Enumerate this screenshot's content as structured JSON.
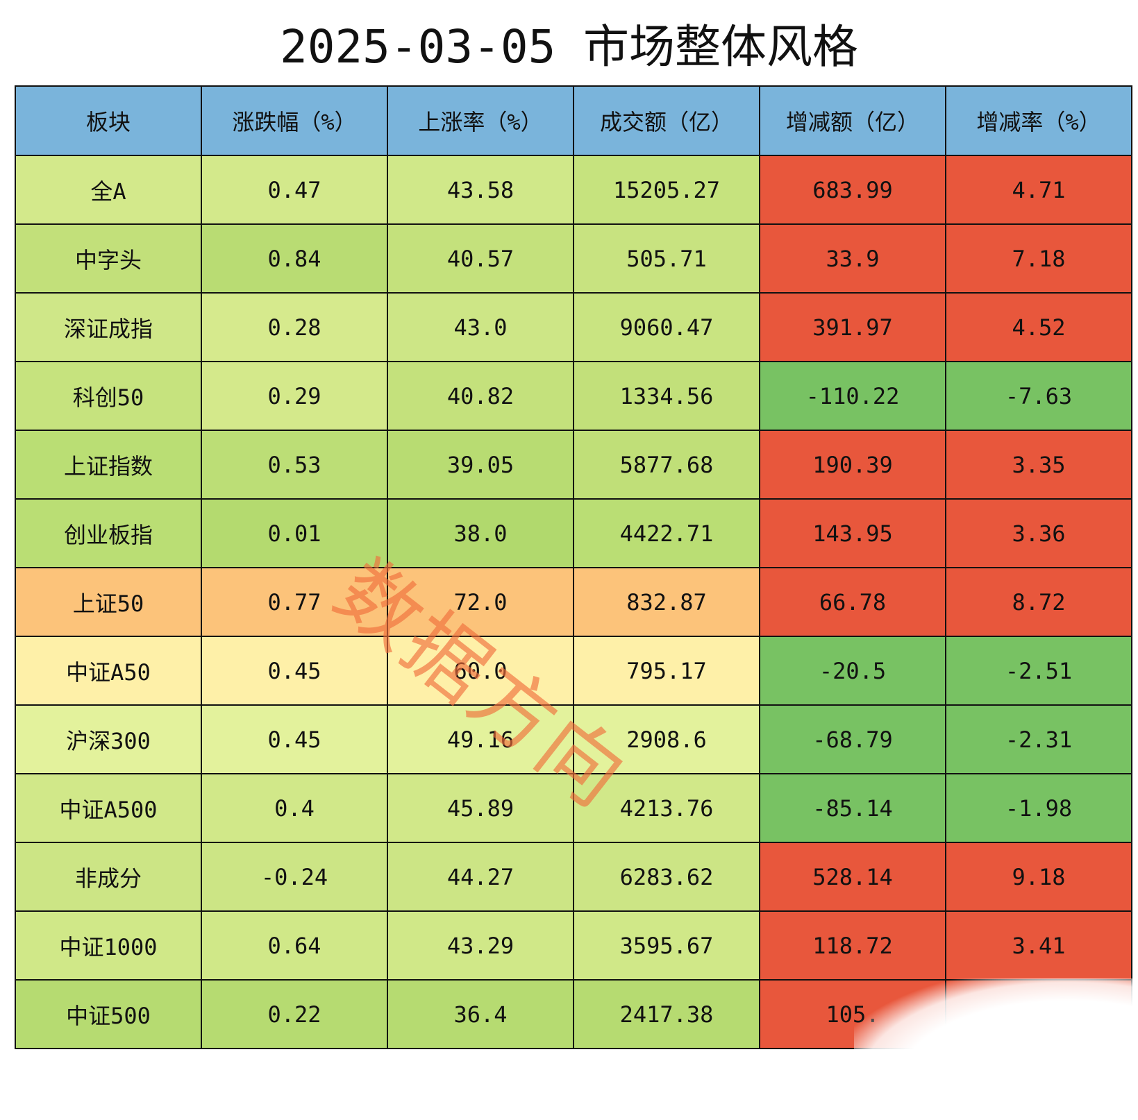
{
  "header": {
    "title": "2025-03-05 市场整体风格"
  },
  "watermark": "数据方向",
  "table": {
    "header_color": "#7ab4db",
    "columns": [
      "板块",
      "涨跌幅（%）",
      "上涨率（%）",
      "成交额（亿）",
      "增减额（亿）",
      "增减率（%）"
    ],
    "rows": [
      [
        "全A",
        "0.47",
        "43.58",
        "15205.27",
        "683.99",
        "4.71"
      ],
      [
        "中字头",
        "0.84",
        "40.57",
        "505.71",
        "33.9",
        "7.18"
      ],
      [
        "深证成指",
        "0.28",
        "43.0",
        "9060.47",
        "391.97",
        "4.52"
      ],
      [
        "科创50",
        "0.29",
        "40.82",
        "1334.56",
        "-110.22",
        "-7.63"
      ],
      [
        "上证指数",
        "0.53",
        "39.05",
        "5877.68",
        "190.39",
        "3.35"
      ],
      [
        "创业板指",
        "0.01",
        "38.0",
        "4422.71",
        "143.95",
        "3.36"
      ],
      [
        "上证50",
        "0.77",
        "72.0",
        "832.87",
        "66.78",
        "8.72"
      ],
      [
        "中证A50",
        "0.45",
        "60.0",
        "795.17",
        "-20.5",
        "-2.51"
      ],
      [
        "沪深300",
        "0.45",
        "49.16",
        "2908.6",
        "-68.79",
        "-2.31"
      ],
      [
        "中证A500",
        "0.4",
        "45.89",
        "4213.76",
        "-85.14",
        "-1.98"
      ],
      [
        "非成分",
        "-0.24",
        "44.27",
        "6283.62",
        "528.14",
        "9.18"
      ],
      [
        "中证1000",
        "0.64",
        "43.29",
        "3595.67",
        "118.72",
        "3.41"
      ],
      [
        "中证500",
        "0.22",
        "36.4",
        "2417.38",
        "105.",
        null
      ]
    ],
    "cell_colors": [
      [
        "#d3e98b",
        "#d3e98b",
        "#d0e889",
        "#c6e37e",
        "#e8573c",
        "#e8573c"
      ],
      [
        "#c2e07a",
        "#b9dc73",
        "#c4e17c",
        "#c8e380",
        "#e8573c",
        "#e8573c"
      ],
      [
        "#cfe788",
        "#d6ea8d",
        "#cde686",
        "#c9e481",
        "#e8573c",
        "#e8573c"
      ],
      [
        "#c6e37e",
        "#d4e98b",
        "#c4e17c",
        "#c2e07a",
        "#78c263",
        "#78c263"
      ],
      [
        "#bade74",
        "#bcde76",
        "#b8dc72",
        "#c0df78",
        "#e8573c",
        "#e8573c"
      ],
      [
        "#bade74",
        "#b4da6f",
        "#b1d96d",
        "#bade74",
        "#e8573c",
        "#e8573c"
      ],
      [
        "#fcc37a",
        "#fcc37a",
        "#fcc37a",
        "#fcc37a",
        "#e8573c",
        "#e8573c"
      ],
      [
        "#fef0a8",
        "#fef0a8",
        "#fef0a8",
        "#fef0a8",
        "#78c263",
        "#78c263"
      ],
      [
        "#e3f29c",
        "#e3f29c",
        "#e3f29c",
        "#e3f29c",
        "#78c263",
        "#78c263"
      ],
      [
        "#d1e889",
        "#d1e889",
        "#d1e889",
        "#d1e889",
        "#78c263",
        "#78c263"
      ],
      [
        "#cce585",
        "#cce585",
        "#cce585",
        "#cce585",
        "#e8573c",
        "#e8573c"
      ],
      [
        "#d0e888",
        "#d0e888",
        "#d0e888",
        "#d0e888",
        "#e8573c",
        "#e8573c"
      ],
      [
        "#b6db71",
        "#b6db71",
        "#b6db71",
        "#b6db71",
        "#e8573c",
        "#e8573c"
      ]
    ]
  }
}
